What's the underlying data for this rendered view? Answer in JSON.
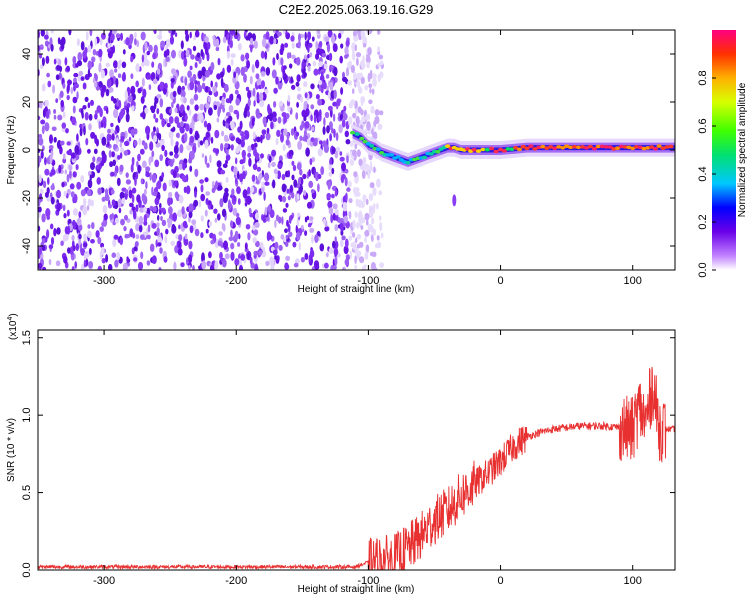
{
  "title": "C2E2.2025.063.19.16.G29",
  "chart_data": [
    {
      "type": "heatmap",
      "xlabel": "Height of straight line (km)",
      "ylabel": "Frequency (Hz)",
      "xlim": [
        -350,
        132
      ],
      "ylim": [
        -50,
        50
      ],
      "xticks": [
        -300,
        -200,
        -100,
        0,
        100
      ],
      "yticks": [
        -40,
        -20,
        0,
        20,
        40
      ],
      "noise_region_x": [
        -350,
        -100
      ],
      "signal_track": {
        "x": [
          -112,
          -105,
          -100,
          -95,
          -90,
          -85,
          -80,
          -75,
          -70,
          -65,
          -60,
          -55,
          -50,
          -45,
          -40,
          -35,
          -30,
          -25,
          -20,
          -10,
          0,
          20,
          50,
          80,
          100,
          120,
          132
        ],
        "frequency": [
          7,
          5,
          2,
          1,
          -1,
          -2,
          -3,
          -4,
          -5,
          -4,
          -3,
          -2,
          -1,
          0,
          1,
          1,
          0,
          0,
          0,
          0,
          0,
          1,
          1,
          1,
          1,
          1,
          1
        ]
      },
      "colorbar": {
        "label": "Normalized spectral amplitude",
        "range": [
          0,
          1
        ],
        "ticks": [
          "0.0",
          "0.2",
          "0.4",
          "0.6",
          "0.8"
        ]
      }
    },
    {
      "type": "line",
      "xlabel": "Height of straight line (km)",
      "ylabel": "SNR (10 * v/v)",
      "y_multiplier": "(x10",
      "y_multiplier_exp": "4",
      "y_multiplier_close": ")",
      "xlim": [
        -350,
        132
      ],
      "ylim": [
        0,
        1.55
      ],
      "xticks": [
        -300,
        -200,
        -100,
        0,
        100
      ],
      "yticks": [
        "0.0",
        "0.5",
        "1.0",
        "1.5"
      ],
      "color": "#e83030",
      "series": [
        {
          "x": [
            -350,
            -300,
            -250,
            -200,
            -150,
            -110,
            -100,
            -90,
            -80,
            -70,
            -60,
            -50,
            -40,
            -30,
            -20,
            -10,
            0,
            10,
            20,
            30,
            40,
            50,
            60,
            70,
            80,
            90,
            100,
            105,
            110,
            115,
            120,
            125,
            132
          ],
          "values": [
            0.02,
            0.02,
            0.02,
            0.02,
            0.02,
            0.02,
            0.05,
            0.06,
            0.08,
            0.14,
            0.22,
            0.32,
            0.38,
            0.48,
            0.55,
            0.62,
            0.7,
            0.8,
            0.86,
            0.89,
            0.91,
            0.92,
            0.93,
            0.93,
            0.93,
            0.92,
            0.9,
            1.05,
            0.95,
            1.2,
            0.92,
            0.91,
            0.91
          ]
        }
      ]
    }
  ]
}
